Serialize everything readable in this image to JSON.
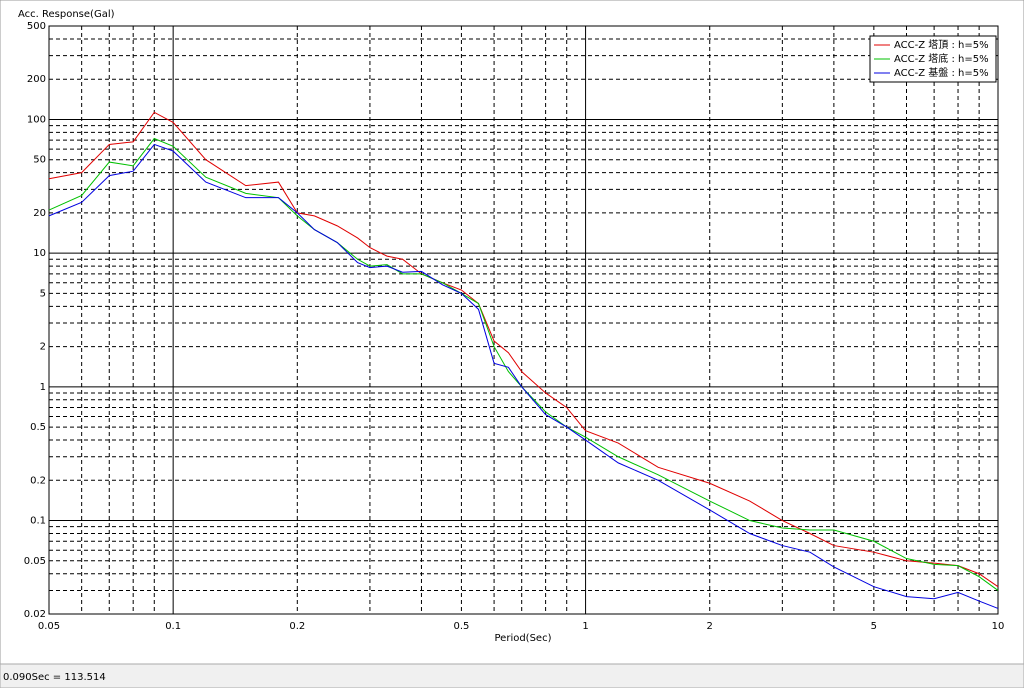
{
  "chart_data": {
    "type": "line",
    "y_label": "Acc. Response(Gal)",
    "x_label": "Period(Sec)",
    "status": "0.090Sec = 113.514",
    "log_x": true,
    "log_y": true,
    "grid": true,
    "legend": "upper right",
    "xlim": [
      0.05,
      10
    ],
    "ylim": [
      0.02,
      500
    ],
    "xticks": [
      0.05,
      0.1,
      0.2,
      0.5,
      1,
      2,
      5,
      10
    ],
    "yticks": [
      0.02,
      0.05,
      0.1,
      0.2,
      0.5,
      1,
      2,
      5,
      10,
      20,
      50,
      100,
      200,
      500
    ],
    "minor_xticks": [
      0.06,
      0.07,
      0.08,
      0.09,
      0.3,
      0.4,
      0.6,
      0.7,
      0.8,
      0.9,
      3,
      4,
      6,
      7,
      8,
      9
    ],
    "minor_yticks": [
      0.03,
      0.04,
      0.06,
      0.07,
      0.08,
      0.09,
      0.3,
      0.4,
      0.6,
      0.7,
      0.8,
      0.9,
      3,
      4,
      6,
      7,
      8,
      9,
      30,
      40,
      60,
      70,
      80,
      90,
      300,
      400
    ],
    "x": [
      0.05,
      0.06,
      0.07,
      0.08,
      0.09,
      0.1,
      0.12,
      0.15,
      0.18,
      0.2,
      0.22,
      0.25,
      0.28,
      0.3,
      0.33,
      0.36,
      0.4,
      0.45,
      0.5,
      0.55,
      0.6,
      0.65,
      0.7,
      0.8,
      0.9,
      1,
      1.2,
      1.5,
      2,
      2.5,
      3,
      3.5,
      4,
      5,
      6,
      7,
      8,
      9,
      10
    ],
    "series": [
      {
        "name": "ACC-Z 塔頂 : h=5%",
        "color": "#e00000",
        "values": [
          36,
          40,
          65,
          68,
          113,
          95,
          50,
          32,
          34,
          20,
          19,
          16,
          13,
          11,
          9.5,
          9,
          7,
          6,
          5.3,
          4.2,
          2.2,
          1.8,
          1.3,
          0.9,
          0.7,
          0.47,
          0.38,
          0.25,
          0.19,
          0.14,
          0.1,
          0.08,
          0.065,
          0.058,
          0.05,
          0.048,
          0.046,
          0.04,
          0.032
        ]
      },
      {
        "name": "ACC-Z 塔底 : h=5%",
        "color": "#00c000",
        "values": [
          21,
          27,
          48,
          45,
          72,
          63,
          37,
          28,
          26,
          19,
          15,
          12,
          9,
          8,
          8.2,
          7,
          7,
          6,
          5,
          4.2,
          2,
          1.3,
          1.0,
          0.65,
          0.5,
          0.42,
          0.3,
          0.22,
          0.14,
          0.1,
          0.088,
          0.085,
          0.085,
          0.07,
          0.052,
          0.047,
          0.046,
          0.038,
          0.03
        ]
      },
      {
        "name": "ACC-Z 基盤 : h=5%",
        "color": "#0000e0",
        "values": [
          19,
          24,
          38,
          41,
          65,
          58,
          34,
          26,
          26,
          20,
          15,
          12,
          8.5,
          7.8,
          8,
          7.2,
          7.3,
          5.8,
          5,
          3.8,
          1.5,
          1.4,
          1.0,
          0.62,
          0.5,
          0.4,
          0.27,
          0.2,
          0.12,
          0.08,
          0.065,
          0.058,
          0.045,
          0.032,
          0.027,
          0.026,
          0.029,
          0.025,
          0.022
        ]
      }
    ]
  }
}
